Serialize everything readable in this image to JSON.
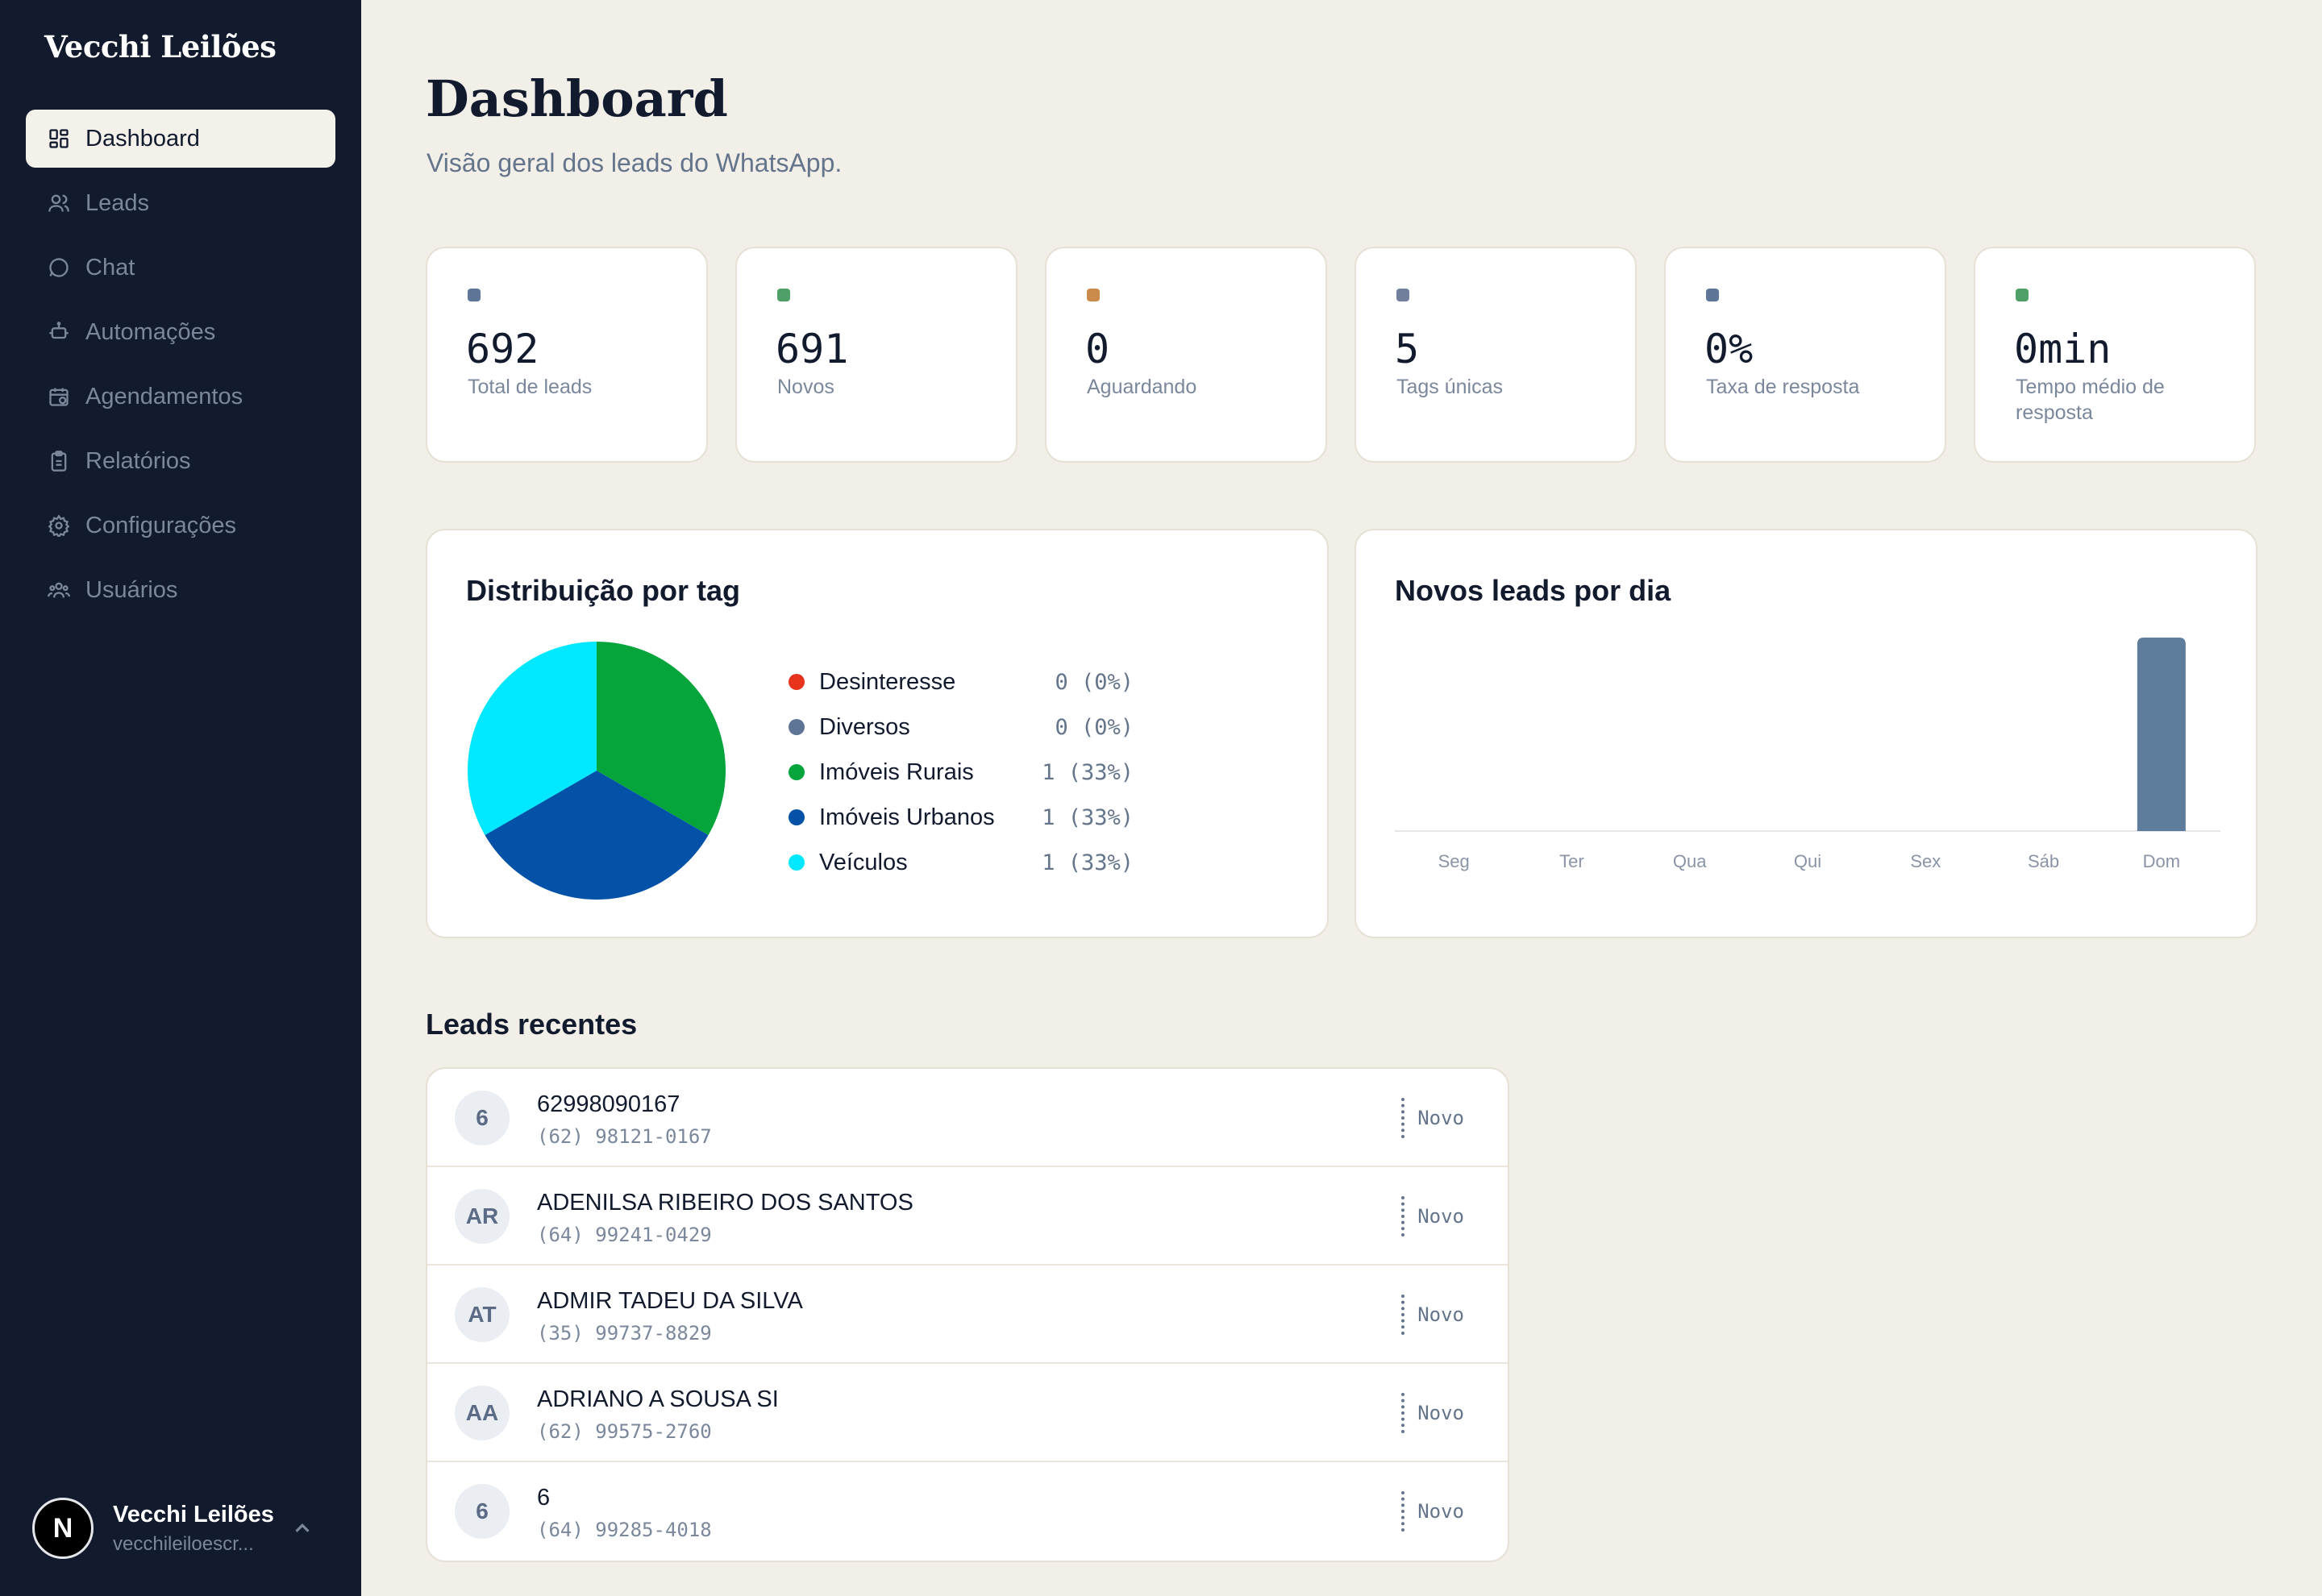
{
  "brand": "Vecchi Leilões",
  "nav": [
    {
      "label": "Dashboard",
      "icon": "dashboard-icon",
      "active": true
    },
    {
      "label": "Leads",
      "icon": "users-icon"
    },
    {
      "label": "Chat",
      "icon": "chat-icon"
    },
    {
      "label": "Automações",
      "icon": "bot-icon"
    },
    {
      "label": "Agendamentos",
      "icon": "calendar-icon"
    },
    {
      "label": "Relatórios",
      "icon": "clipboard-icon"
    },
    {
      "label": "Configurações",
      "icon": "gear-icon"
    },
    {
      "label": "Usuários",
      "icon": "users-group-icon"
    }
  ],
  "user": {
    "initial": "N",
    "name": "Vecchi Leilões",
    "email": "vecchileiloescr..."
  },
  "header": {
    "title": "Dashboard",
    "subtitle": "Visão geral dos leads do WhatsApp."
  },
  "stats": [
    {
      "value": "692",
      "label": "Total de leads",
      "color": "#5e7596"
    },
    {
      "value": "691",
      "label": "Novos",
      "color": "#4f9f69"
    },
    {
      "value": "0",
      "label": "Aguardando",
      "color": "#c98a4b"
    },
    {
      "value": "5",
      "label": "Tags únicas",
      "color": "#6f7f9c"
    },
    {
      "value": "0%",
      "label": "Taxa de resposta",
      "color": "#5e7596"
    },
    {
      "value": "0min",
      "label": "Tempo médio de resposta",
      "color": "#4f9f69"
    }
  ],
  "pie_card": {
    "title": "Distribuição por tag"
  },
  "bar_card": {
    "title": "Novos leads por dia"
  },
  "chart_data": [
    {
      "type": "pie",
      "title": "Distribuição por tag",
      "slices": [
        {
          "label": "Desinteresse",
          "value": 0,
          "display": "0 (0%)",
          "color": "#e8341c"
        },
        {
          "label": "Diversos",
          "value": 0,
          "display": "0 (0%)",
          "color": "#5e7596"
        },
        {
          "label": "Imóveis Rurais",
          "value": 1,
          "display": "1 (33%)",
          "color": "#05a53c"
        },
        {
          "label": "Imóveis Urbanos",
          "value": 1,
          "display": "1 (33%)",
          "color": "#0352a8"
        },
        {
          "label": "Veículos",
          "value": 1,
          "display": "1 (33%)",
          "color": "#00e8ff"
        }
      ]
    },
    {
      "type": "bar",
      "title": "Novos leads por dia",
      "categories": [
        "Seg",
        "Ter",
        "Qua",
        "Qui",
        "Sex",
        "Sáb",
        "Dom"
      ],
      "values": [
        0,
        0,
        0,
        0,
        0,
        0,
        691
      ],
      "color": "#5e7c9c"
    }
  ],
  "recent": {
    "title": "Leads recentes",
    "leads": [
      {
        "initials": "6",
        "name": "62998090167",
        "phone": "(62) 98121-0167",
        "status": "Novo"
      },
      {
        "initials": "AR",
        "name": "ADENILSA RIBEIRO DOS SANTOS",
        "phone": "(64) 99241-0429",
        "status": "Novo"
      },
      {
        "initials": "AT",
        "name": "ADMIR TADEU DA SILVA",
        "phone": "(35) 99737-8829",
        "status": "Novo"
      },
      {
        "initials": "AA",
        "name": "ADRIANO A SOUSA SI",
        "phone": "(62) 99575-2760",
        "status": "Novo"
      },
      {
        "initials": "6",
        "name": "6",
        "phone": "(64) 99285-4018",
        "status": "Novo"
      }
    ]
  }
}
